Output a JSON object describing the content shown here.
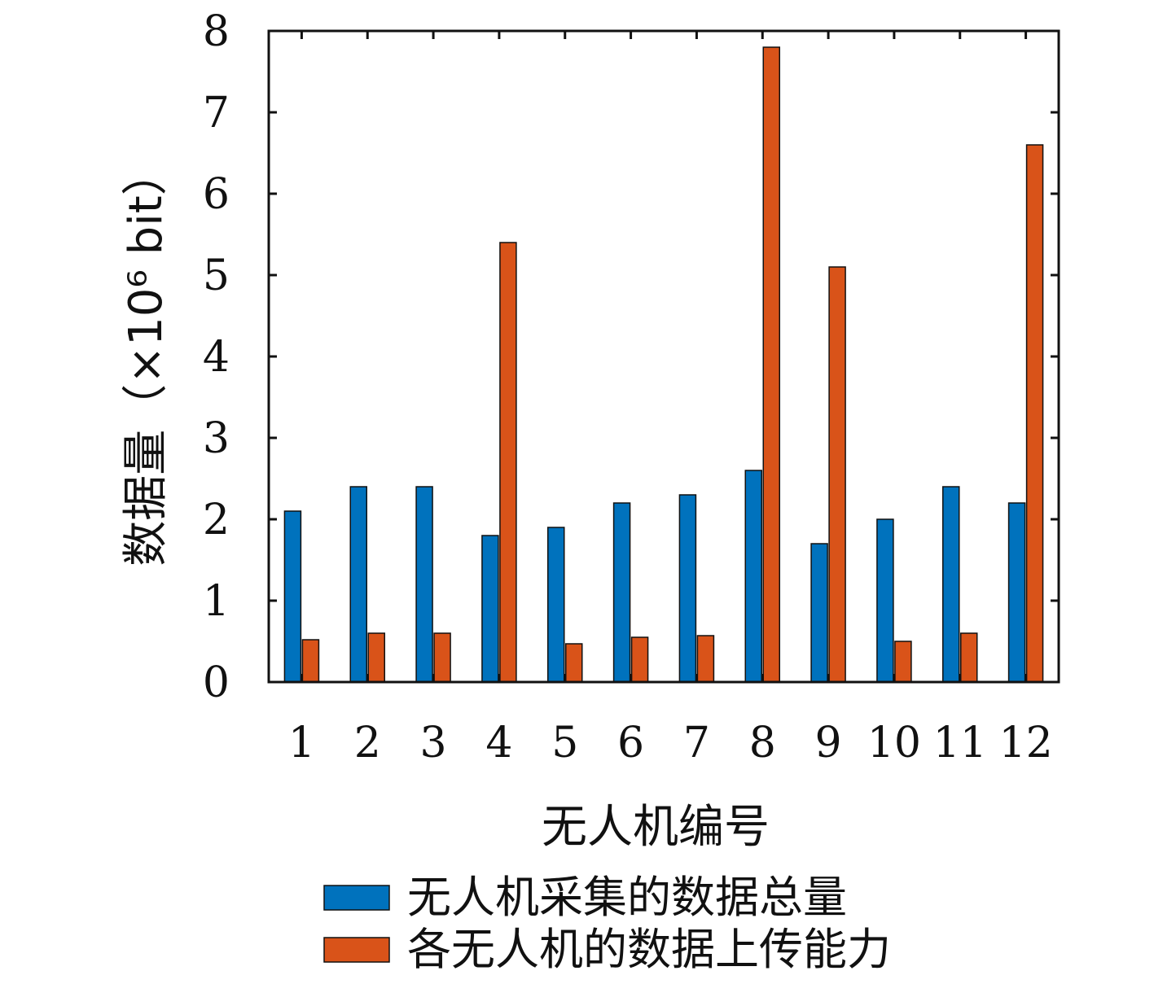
{
  "chart_data": {
    "type": "bar",
    "categories": [
      "1",
      "2",
      "3",
      "4",
      "5",
      "6",
      "7",
      "8",
      "9",
      "10",
      "11",
      "12"
    ],
    "series": [
      {
        "name": "无人机采集的数据总量",
        "color": "#0072BD",
        "values": [
          2.1,
          2.4,
          2.4,
          1.8,
          1.9,
          2.2,
          2.3,
          2.6,
          1.7,
          2.0,
          2.4,
          2.2
        ]
      },
      {
        "name": "各无人机的数据上传能力",
        "color": "#D95319",
        "values": [
          0.52,
          0.6,
          0.6,
          5.4,
          0.47,
          0.55,
          0.57,
          7.8,
          5.1,
          0.5,
          0.6,
          6.6
        ]
      }
    ],
    "xlabel": "无人机编号",
    "ylabel": "数据量（×10⁶ bit）",
    "ylim": [
      0,
      8
    ],
    "yticks": [
      "0",
      "1",
      "2",
      "3",
      "4",
      "5",
      "6",
      "7",
      "8"
    ],
    "grid": false,
    "legend_position": "bottom"
  }
}
